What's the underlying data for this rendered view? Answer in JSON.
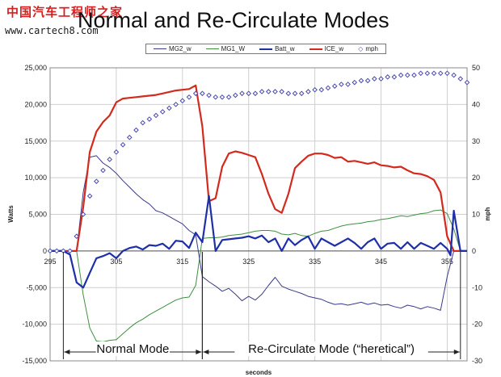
{
  "slide": {
    "title": "Normal and Re-Circulate Modes"
  },
  "watermark": {
    "brand": "中国汽车工程师之家",
    "url": "www.cartech8.com"
  },
  "chart_data": {
    "type": "line",
    "xlabel": "seconds",
    "ylabel": "Watts",
    "y2label": "mph",
    "xlim": [
      295,
      358
    ],
    "ylim": [
      -15000,
      25000
    ],
    "y2lim": [
      -30,
      50
    ],
    "x_ticks": [
      295,
      305,
      315,
      325,
      335,
      345,
      355
    ],
    "y_ticks": [
      25000,
      20000,
      15000,
      10000,
      5000,
      0,
      -5000,
      -10000,
      -15000
    ],
    "y_tick_labels": [
      "25,000",
      "20,000",
      "15,000",
      "10,000",
      "5,000",
      "0",
      "-5,000",
      "-10,000",
      "-15,000"
    ],
    "y2_ticks": [
      50,
      40,
      30,
      20,
      10,
      0,
      -10,
      -20,
      -30
    ],
    "grid": true,
    "legend_position": "top",
    "series": [
      {
        "name": "MG2_w",
        "axis": "left",
        "color": "#3a3a8c",
        "width": 1,
        "x": [
          295,
          297,
          298,
          299,
          300,
          301,
          302,
          303,
          304,
          305,
          306,
          307,
          308,
          309,
          310,
          311,
          312,
          313,
          314,
          315,
          316,
          317,
          318,
          319,
          320,
          321,
          322,
          323,
          324,
          325,
          326,
          327,
          328,
          329,
          330,
          331,
          332,
          333,
          334,
          335,
          336,
          337,
          338,
          339,
          340,
          341,
          342,
          343,
          344,
          345,
          346,
          347,
          348,
          349,
          350,
          351,
          352,
          353,
          354,
          355,
          356,
          357,
          358
        ],
        "y": [
          0,
          0,
          0,
          0,
          8000,
          12800,
          13000,
          12000,
          11400,
          10600,
          9600,
          8700,
          7800,
          7000,
          6400,
          5500,
          5200,
          4700,
          4200,
          3700,
          2800,
          2200,
          -3500,
          -4200,
          -4800,
          -5500,
          -5100,
          -5900,
          -6800,
          -6200,
          -6700,
          -5900,
          -4700,
          -3600,
          -4800,
          -5200,
          -5500,
          -5800,
          -6200,
          -6400,
          -6600,
          -7000,
          -7300,
          -7200,
          -7400,
          -7200,
          -7000,
          -7300,
          -7100,
          -7400,
          -7300,
          -7600,
          -7800,
          -7400,
          -7600,
          -7900,
          -7600,
          -7800,
          -8100,
          -3500,
          0,
          0,
          0
        ]
      },
      {
        "name": "MG1_W",
        "axis": "left",
        "color": "#3f8f3f",
        "width": 1,
        "x": [
          295,
          297,
          298,
          299,
          300,
          301,
          302,
          303,
          304,
          305,
          306,
          307,
          308,
          309,
          310,
          311,
          312,
          313,
          314,
          315,
          316,
          317,
          318,
          319,
          320,
          321,
          322,
          323,
          324,
          325,
          326,
          327,
          328,
          329,
          330,
          331,
          332,
          333,
          334,
          335,
          336,
          337,
          338,
          339,
          340,
          341,
          342,
          343,
          344,
          345,
          346,
          347,
          348,
          349,
          350,
          351,
          352,
          353,
          354,
          355,
          356,
          357,
          358
        ],
        "y": [
          0,
          0,
          0,
          0,
          -6000,
          -10500,
          -12300,
          -12400,
          -12200,
          -12100,
          -11300,
          -10500,
          -9800,
          -9300,
          -8700,
          -8200,
          -7700,
          -7200,
          -6700,
          -6400,
          -6300,
          -4700,
          1700,
          1800,
          1800,
          1900,
          2100,
          2200,
          2300,
          2500,
          2700,
          2800,
          2800,
          2700,
          2300,
          2200,
          2400,
          2100,
          2000,
          2400,
          2700,
          2800,
          3100,
          3400,
          3600,
          3700,
          3800,
          4000,
          4100,
          4300,
          4400,
          4600,
          4800,
          4700,
          4900,
          5100,
          5200,
          5500,
          5600,
          5100,
          3000,
          0,
          0
        ]
      },
      {
        "name": "Batt_w",
        "axis": "left",
        "color": "#1f2fa8",
        "width": 2.2,
        "x": [
          295,
          296,
          297,
          298,
          299,
          300,
          301,
          302,
          303,
          304,
          305,
          306,
          307,
          308,
          309,
          310,
          311,
          312,
          313,
          314,
          315,
          316,
          317,
          318,
          319,
          320,
          321,
          322,
          323,
          324,
          325,
          326,
          327,
          328,
          329,
          330,
          331,
          332,
          333,
          334,
          335,
          336,
          337,
          338,
          339,
          340,
          341,
          342,
          343,
          344,
          345,
          346,
          347,
          348,
          349,
          350,
          351,
          352,
          353,
          354,
          355,
          355.5,
          356,
          357,
          358
        ],
        "y": [
          0,
          0,
          0,
          -500,
          -4300,
          -5000,
          -3000,
          -1000,
          -700,
          -300,
          -1000,
          0,
          400,
          600,
          200,
          800,
          700,
          1000,
          300,
          1400,
          1300,
          400,
          2500,
          1200,
          7500,
          0,
          1500,
          1600,
          1700,
          1800,
          2000,
          1700,
          2100,
          1200,
          1700,
          0,
          1700,
          800,
          1500,
          2000,
          300,
          1700,
          1200,
          700,
          1200,
          1700,
          1100,
          300,
          1200,
          1700,
          300,
          1000,
          1100,
          300,
          1200,
          300,
          1100,
          700,
          300,
          1100,
          300,
          -600,
          5500,
          0,
          0
        ]
      },
      {
        "name": "ICE_w",
        "axis": "left",
        "color": "#d42a1e",
        "width": 2.2,
        "x": [
          295,
          297,
          298,
          299,
          300,
          301,
          302,
          303,
          304,
          305,
          306,
          307,
          308,
          309,
          310,
          311,
          312,
          313,
          314,
          315,
          316,
          317,
          318,
          319,
          320,
          321,
          322,
          323,
          324,
          325,
          326,
          327,
          328,
          329,
          330,
          331,
          332,
          333,
          334,
          335,
          336,
          337,
          338,
          339,
          340,
          341,
          342,
          343,
          344,
          345,
          346,
          347,
          348,
          349,
          350,
          351,
          352,
          353,
          354,
          355,
          356,
          357,
          358
        ],
        "y": [
          0,
          0,
          0,
          0,
          6000,
          13500,
          16300,
          17600,
          18500,
          20300,
          20800,
          20900,
          21000,
          21100,
          21200,
          21300,
          21500,
          21700,
          21900,
          22000,
          22100,
          22600,
          17000,
          6800,
          7200,
          11500,
          13300,
          13600,
          13400,
          13100,
          12800,
          10500,
          7800,
          5700,
          5200,
          7800,
          11300,
          12200,
          13000,
          13300,
          13300,
          13100,
          12700,
          12800,
          12200,
          12300,
          12100,
          11900,
          12100,
          11700,
          11600,
          11400,
          11500,
          11000,
          10600,
          10500,
          10200,
          9700,
          8000,
          2000,
          0,
          0,
          0
        ]
      },
      {
        "name": "mph",
        "axis": "right",
        "color": "#4a4ab0",
        "marker": "diamond",
        "x": [
          295,
          296,
          297,
          298,
          299,
          300,
          301,
          302,
          303,
          304,
          305,
          306,
          307,
          308,
          309,
          310,
          311,
          312,
          313,
          314,
          315,
          316,
          317,
          318,
          319,
          320,
          321,
          322,
          323,
          324,
          325,
          326,
          327,
          328,
          329,
          330,
          331,
          332,
          333,
          334,
          335,
          336,
          337,
          338,
          339,
          340,
          341,
          342,
          343,
          344,
          345,
          346,
          347,
          348,
          349,
          350,
          351,
          352,
          353,
          354,
          355,
          356,
          357,
          358
        ],
        "y": [
          0,
          0,
          0,
          0,
          4,
          10,
          15,
          19,
          22,
          25,
          27,
          29,
          31,
          33,
          35,
          36,
          37,
          38,
          39,
          40,
          41,
          42,
          43,
          43,
          42.5,
          42,
          42,
          42,
          42.5,
          43,
          43,
          43,
          43.5,
          43.5,
          43.5,
          43.5,
          43,
          43,
          43,
          43.5,
          44,
          44,
          44.5,
          45,
          45.5,
          45.5,
          46,
          46.5,
          46.5,
          47,
          47,
          47.5,
          47.5,
          48,
          48,
          48,
          48.5,
          48.5,
          48.5,
          48.5,
          48.5,
          48,
          47,
          46
        ]
      }
    ],
    "annotations": [
      {
        "text": "Normal Mode",
        "x_start": 297,
        "x_end": 318
      },
      {
        "text": "Re-Circulate Mode (“heretical”)",
        "x_start": 318,
        "x_end": 357
      }
    ]
  }
}
